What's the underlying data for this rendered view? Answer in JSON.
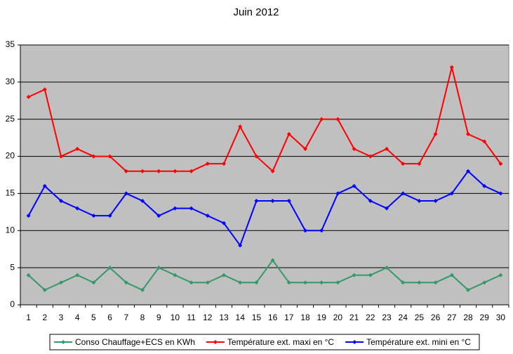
{
  "chart_data": {
    "type": "line",
    "title": "Juin 2012",
    "categories": [
      "1",
      "2",
      "3",
      "4",
      "5",
      "6",
      "7",
      "8",
      "9",
      "10",
      "11",
      "12",
      "13",
      "14",
      "15",
      "16",
      "17",
      "18",
      "19",
      "20",
      "21",
      "22",
      "23",
      "24",
      "25",
      "26",
      "27",
      "28",
      "29",
      "30"
    ],
    "series": [
      {
        "name": "Conso Chauffage+ECS en KWh",
        "color": "#339966",
        "values": [
          4,
          2,
          3,
          4,
          3,
          5,
          3,
          2,
          5,
          4,
          3,
          3,
          4,
          3,
          3,
          6,
          3,
          3,
          3,
          3,
          4,
          4,
          5,
          3,
          3,
          3,
          4,
          2,
          3,
          4
        ]
      },
      {
        "name": "Température ext. maxi en °C",
        "color": "#ff0000",
        "values": [
          28,
          29,
          20,
          21,
          20,
          20,
          18,
          18,
          18,
          18,
          18,
          19,
          19,
          24,
          20,
          18,
          23,
          21,
          25,
          25,
          21,
          20,
          21,
          19,
          19,
          23,
          32,
          23,
          22,
          19
        ]
      },
      {
        "name": "Température ext. mini en °C",
        "color": "#0000ff",
        "values": [
          12,
          16,
          14,
          13,
          12,
          12,
          15,
          14,
          12,
          13,
          13,
          12,
          11,
          8,
          14,
          14,
          14,
          10,
          10,
          15,
          16,
          14,
          13,
          15,
          14,
          14,
          15,
          18,
          16,
          15
        ]
      }
    ],
    "ylim": [
      0,
      35
    ],
    "yticks": [
      0,
      5,
      10,
      15,
      20,
      25,
      30,
      35
    ],
    "grid": true,
    "legend": "bottom"
  }
}
